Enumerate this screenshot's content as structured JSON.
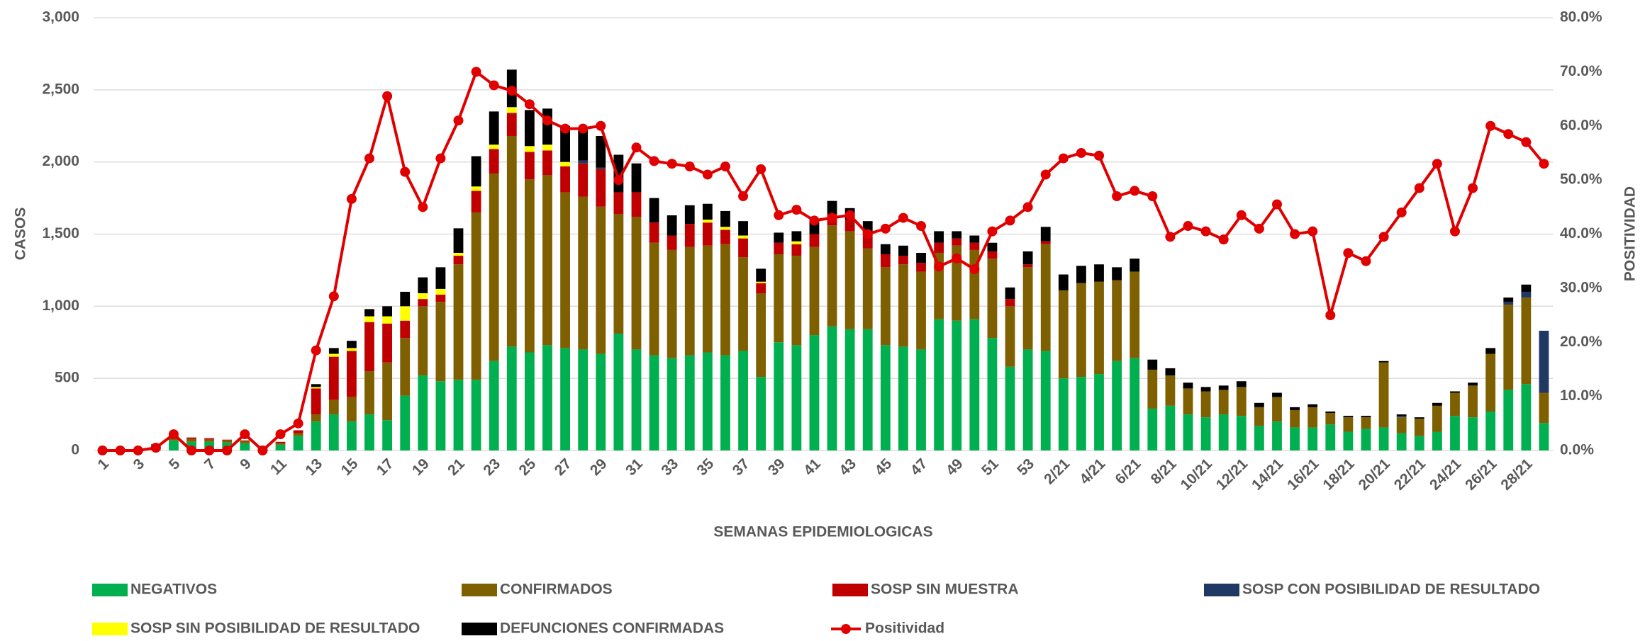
{
  "chart_data": {
    "type": "bar",
    "stacked": true,
    "x_label": "SEMANAS EPIDEMIOLOGICAS",
    "y_label": "CASOS",
    "y2_label": "POSITIVIDAD",
    "grid": true,
    "legend": "bottom",
    "categories": [
      "1",
      null,
      "3",
      null,
      "5",
      null,
      "7",
      null,
      "9",
      null,
      "11",
      null,
      "13",
      null,
      "15",
      null,
      "17",
      null,
      "19",
      null,
      "21",
      null,
      "23",
      null,
      "25",
      null,
      "27",
      null,
      "29",
      null,
      "31",
      null,
      "33",
      null,
      "35",
      null,
      "37",
      null,
      "39",
      null,
      "41",
      null,
      "43",
      null,
      "45",
      null,
      "47",
      null,
      "49",
      null,
      "51",
      null,
      "53",
      null,
      "2/21",
      null,
      "4/21",
      null,
      "6/21",
      null,
      "8/21",
      null,
      "10/21",
      null,
      "12/21",
      null,
      "14/21",
      null,
      "16/21",
      null,
      "18/21",
      null,
      "20/21",
      null,
      "22/21",
      null,
      "24/21",
      null,
      "26/21",
      null,
      "28/21",
      null
    ],
    "ylim": [
      0,
      3000
    ],
    "yticks": [
      0,
      500,
      {
        "value": 1000,
        "label": "1,000"
      },
      {
        "value": 1500,
        "label": "1,500"
      },
      {
        "value": 2000,
        "label": "2,000"
      },
      {
        "value": 2500,
        "label": "2,500"
      },
      {
        "value": 3000,
        "label": "3,000"
      }
    ],
    "y2lim": [
      0,
      80
    ],
    "y2ticks": [
      {
        "value": 0,
        "label": "0.0%"
      },
      {
        "value": 10,
        "label": "10.0%"
      },
      {
        "value": 20,
        "label": "20.0%"
      },
      {
        "value": 30,
        "label": "30.0%"
      },
      {
        "value": 40,
        "label": "40.0%"
      },
      {
        "value": 50,
        "label": "50.0%"
      },
      {
        "value": 60,
        "label": "60.0%"
      },
      {
        "value": 70,
        "label": "70.0%"
      },
      {
        "value": 80,
        "label": "80.0%"
      }
    ],
    "series": [
      {
        "name": "NEGATIVOS",
        "color": "#00b050",
        "values": [
          5,
          5,
          5,
          40,
          70,
          60,
          60,
          55,
          50,
          25,
          40,
          100,
          200,
          250,
          200,
          250,
          210,
          380,
          520,
          480,
          490,
          490,
          620,
          720,
          680,
          730,
          710,
          700,
          670,
          810,
          700,
          660,
          640,
          660,
          680,
          660,
          690,
          510,
          750,
          730,
          800,
          860,
          840,
          840,
          730,
          720,
          700,
          910,
          900,
          910,
          780,
          580,
          700,
          690,
          500,
          510,
          530,
          620,
          640,
          290,
          310,
          250,
          230,
          250,
          240,
          170,
          200,
          160,
          160,
          180,
          130,
          150,
          160,
          120,
          100,
          130,
          240,
          230,
          270,
          420,
          460,
          190
        ]
      },
      {
        "name": "CONFIRMADOS",
        "color": "#7f6000",
        "values": [
          0,
          0,
          0,
          5,
          20,
          20,
          15,
          15,
          15,
          5,
          10,
          20,
          50,
          100,
          170,
          300,
          400,
          400,
          480,
          550,
          800,
          1160,
          1300,
          1460,
          1200,
          1180,
          1080,
          1060,
          1020,
          830,
          920,
          780,
          750,
          750,
          740,
          770,
          650,
          580,
          610,
          620,
          610,
          700,
          680,
          560,
          540,
          570,
          540,
          460,
          520,
          480,
          550,
          420,
          570,
          740,
          610,
          650,
          640,
          560,
          600,
          270,
          210,
          180,
          180,
          170,
          200,
          130,
          170,
          120,
          140,
          80,
          100,
          80,
          450,
          110,
          120,
          180,
          160,
          220,
          400,
          590,
          600,
          210
        ]
      },
      {
        "name": "SOSP SIN MUESTRA",
        "color": "#c00000",
        "values": [
          0,
          0,
          0,
          0,
          10,
          10,
          10,
          5,
          5,
          0,
          10,
          20,
          180,
          300,
          320,
          340,
          270,
          120,
          50,
          50,
          60,
          150,
          170,
          160,
          190,
          170,
          180,
          230,
          260,
          150,
          170,
          140,
          100,
          160,
          160,
          100,
          130,
          70,
          80,
          80,
          90,
          80,
          80,
          90,
          90,
          60,
          60,
          70,
          50,
          50,
          50,
          50,
          20,
          20,
          0,
          0,
          0,
          0,
          0,
          0,
          0,
          0,
          0,
          0,
          0,
          0,
          0,
          0,
          0,
          0,
          0,
          0,
          0,
          0,
          0,
          0,
          0,
          0,
          0,
          0,
          0,
          0
        ]
      },
      {
        "name": "SOSP CON POSIBILIDAD DE RESULTADO",
        "color": "#1f3864",
        "values": [
          0,
          0,
          0,
          0,
          0,
          0,
          0,
          0,
          0,
          0,
          0,
          0,
          0,
          0,
          0,
          0,
          0,
          0,
          0,
          0,
          0,
          0,
          0,
          0,
          0,
          0,
          0,
          20,
          10,
          0,
          0,
          0,
          0,
          0,
          0,
          0,
          0,
          0,
          0,
          0,
          0,
          0,
          0,
          0,
          0,
          0,
          0,
          0,
          0,
          0,
          0,
          0,
          0,
          0,
          0,
          0,
          0,
          0,
          0,
          0,
          0,
          0,
          0,
          0,
          0,
          0,
          0,
          0,
          0,
          0,
          0,
          0,
          0,
          10,
          0,
          0,
          0,
          0,
          0,
          20,
          40,
          430
        ]
      },
      {
        "name": "SOSP SIN POSIBILIDAD DE RESULTADO",
        "color": "#ffff00",
        "values": [
          0,
          0,
          0,
          0,
          0,
          0,
          0,
          0,
          0,
          0,
          0,
          0,
          10,
          20,
          20,
          40,
          50,
          100,
          40,
          40,
          20,
          30,
          30,
          40,
          40,
          40,
          30,
          0,
          0,
          0,
          0,
          0,
          0,
          0,
          20,
          20,
          20,
          10,
          0,
          20,
          0,
          0,
          0,
          0,
          0,
          0,
          0,
          0,
          0,
          0,
          0,
          0,
          0,
          0,
          0,
          0,
          0,
          0,
          0,
          0,
          0,
          0,
          0,
          0,
          0,
          0,
          0,
          0,
          0,
          0,
          0,
          0,
          0,
          0,
          0,
          0,
          0,
          0,
          0,
          0,
          0,
          0
        ]
      },
      {
        "name": "DEFUNCIONES CONFIRMADAS",
        "color": "#000000",
        "values": [
          0,
          0,
          0,
          0,
          0,
          0,
          0,
          0,
          0,
          0,
          0,
          0,
          20,
          40,
          50,
          50,
          70,
          100,
          110,
          150,
          170,
          210,
          230,
          260,
          250,
          250,
          250,
          220,
          220,
          260,
          200,
          170,
          140,
          130,
          110,
          110,
          100,
          90,
          70,
          70,
          90,
          90,
          80,
          100,
          70,
          70,
          70,
          80,
          50,
          50,
          60,
          80,
          90,
          100,
          110,
          120,
          120,
          90,
          90,
          70,
          50,
          40,
          30,
          30,
          40,
          30,
          30,
          20,
          20,
          10,
          10,
          10,
          10,
          10,
          10,
          20,
          10,
          20,
          40,
          30,
          50,
          0
        ]
      },
      {
        "name": "Positividad",
        "type": "line",
        "axis": "y2",
        "color": "#e00000",
        "values": [
          0,
          0,
          0,
          0.5,
          3,
          0,
          0,
          0,
          3,
          0,
          3,
          5,
          18.5,
          28.5,
          46.5,
          54,
          65.5,
          51.5,
          45,
          54,
          61,
          70,
          67.5,
          66.5,
          64,
          61,
          59.5,
          59.5,
          60,
          50,
          56,
          53.5,
          53,
          52.5,
          51,
          52.5,
          47,
          52,
          43.5,
          44.5,
          42.5,
          43,
          43.5,
          40,
          41,
          43,
          41.5,
          34,
          35.5,
          33.5,
          40.5,
          42.5,
          45,
          51,
          54,
          55,
          54.5,
          47,
          48,
          47,
          39.5,
          41.5,
          40.5,
          39,
          43.5,
          41,
          45.5,
          40,
          40.5,
          25,
          36.5,
          35,
          39.5,
          44,
          48.5,
          53,
          40.5,
          48.5,
          60,
          58.5,
          57,
          53
        ]
      }
    ]
  }
}
